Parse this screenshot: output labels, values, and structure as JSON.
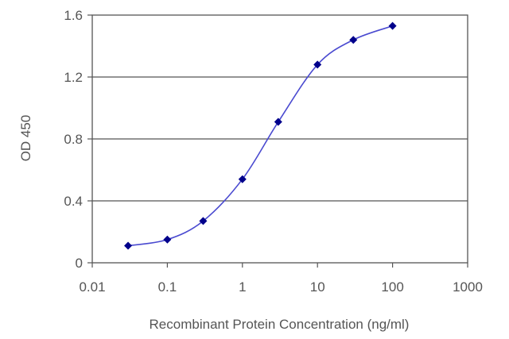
{
  "chart_data": {
    "type": "line",
    "title": "",
    "xlabel": "Recombinant Protein Concentration (ng/ml)",
    "ylabel": "OD 450",
    "xscale": "log",
    "xlim": [
      0.01,
      1000
    ],
    "ylim": [
      0,
      1.6
    ],
    "xticks": [
      "0.01",
      "0.1",
      "1",
      "10",
      "100",
      "1000"
    ],
    "yticks": [
      "0",
      "0.4",
      "0.8",
      "1.2",
      "1.6"
    ],
    "grid": "horizontal",
    "legend": "none",
    "series": [
      {
        "color": "#00008b",
        "x": [
          0.03,
          0.1,
          0.3,
          1,
          3,
          10,
          30,
          100
        ],
        "y": [
          0.11,
          0.15,
          0.27,
          0.54,
          0.91,
          1.28,
          1.44,
          1.53
        ]
      }
    ]
  }
}
